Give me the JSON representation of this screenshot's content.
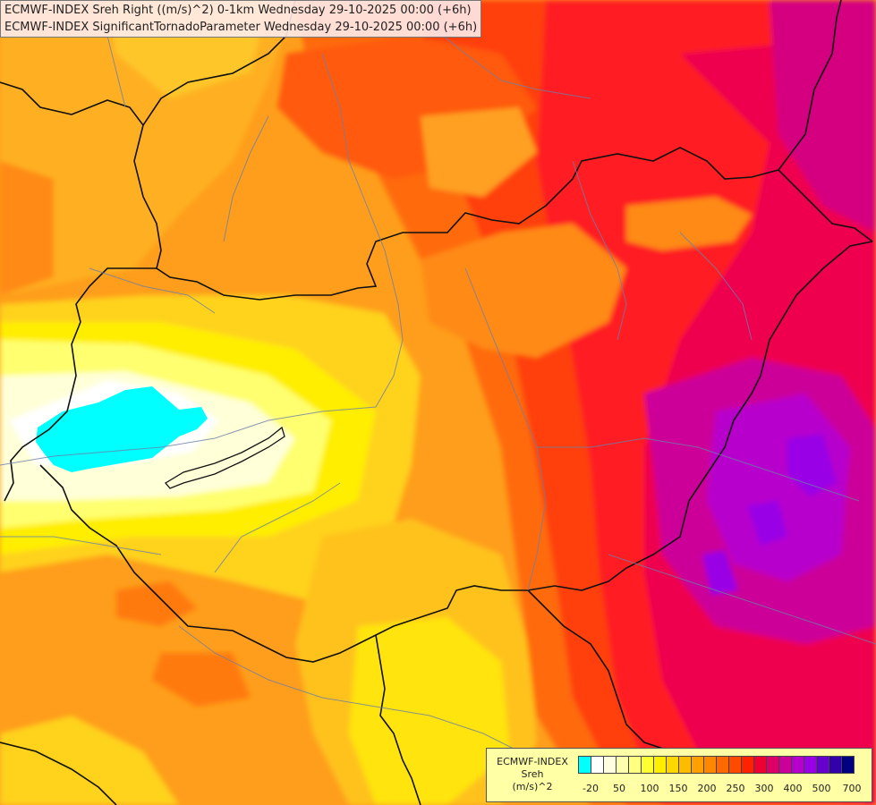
{
  "titles": {
    "line1": "ECMWF-INDEX Sreh Right ((m/s)^2) 0-1km Wednesday 29-10-2025 00:00 (+6h)",
    "line2": "ECMWF-INDEX SignificantTornadoParameter Wednesday 29-10-2025 00:00 (+6h)"
  },
  "legend": {
    "title1": "ECMWF-INDEX",
    "title2": "Sreh",
    "unit": "(m/s)^2",
    "colors": [
      "#00ffff",
      "#ffffff",
      "#ffffe0",
      "#ffffb0",
      "#ffff80",
      "#ffff30",
      "#ffee00",
      "#ffd700",
      "#ffbb00",
      "#ffa000",
      "#ff8800",
      "#ff6a00",
      "#ff4a00",
      "#ff2200",
      "#ee0033",
      "#dd0066",
      "#cc0099",
      "#b800cc",
      "#9900e6",
      "#6600cc",
      "#3300aa",
      "#000080"
    ],
    "ticks": [
      "-20",
      "50",
      "100",
      "150",
      "200",
      "250",
      "300",
      "400",
      "500",
      "700"
    ]
  }
}
